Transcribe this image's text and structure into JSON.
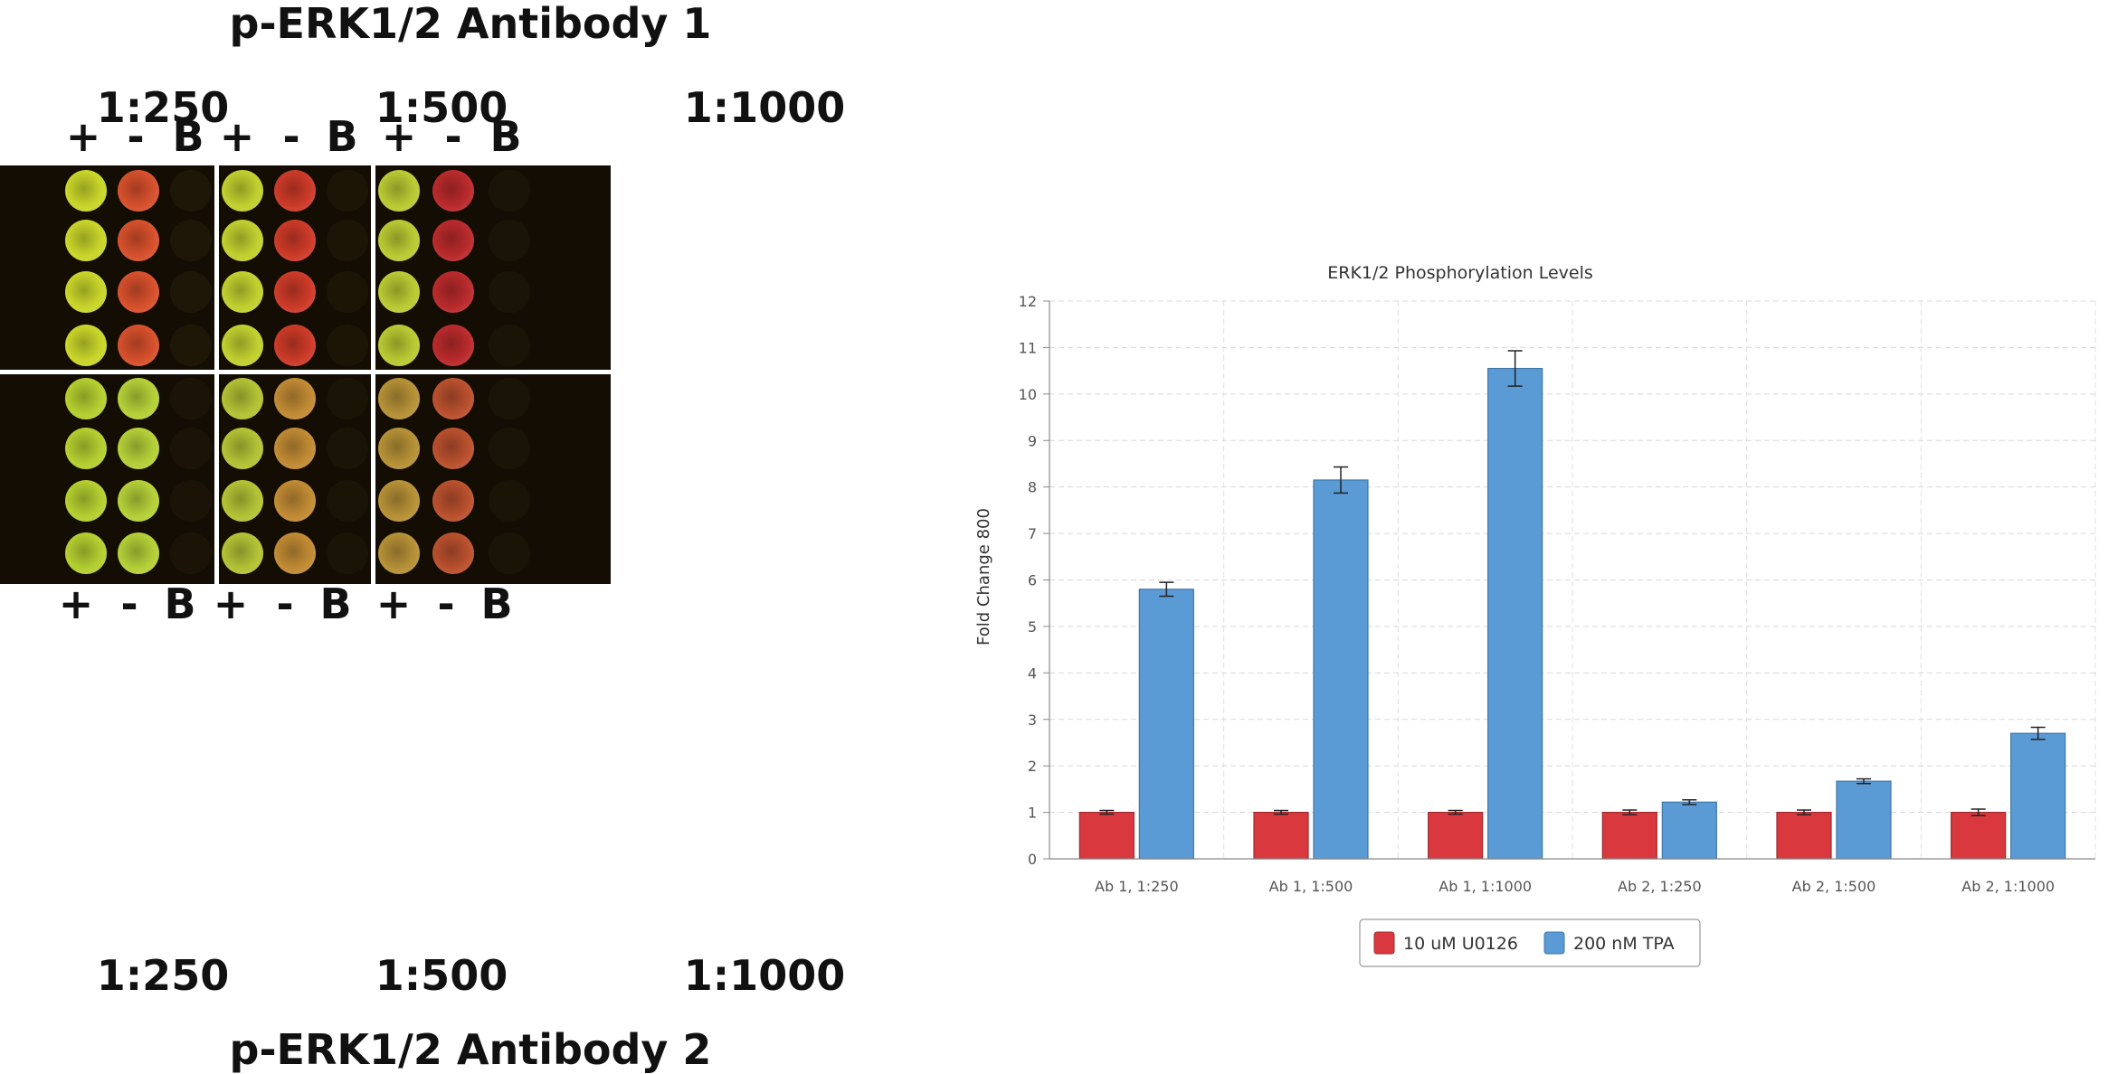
{
  "blot": {
    "top_title": "p-ERK1/2 Antibody 1",
    "bottom_title": "p-ERK1/2 Antibody 2",
    "dilutions": [
      "1:250",
      "1:500",
      "1:1000"
    ],
    "lane_labels": [
      "+",
      "-",
      "B"
    ],
    "panels": [
      {
        "wells": [
          [
            "#c9d52a",
            "#d0562a",
            "#1e1606"
          ],
          [
            "#cbd52c",
            "#c74a28",
            "#1f1707"
          ],
          [
            "#c8d72e",
            "#c04626",
            "#1d1606"
          ],
          [
            "#c2d52c",
            "#c0412a",
            "#1c1506"
          ]
        ]
      },
      {
        "wells": [
          [
            "#aacf30",
            "#b7d236",
            "#1c1506"
          ],
          [
            "#a8cd30",
            "#c49233",
            "#1c1506"
          ],
          [
            "#a7cc31",
            "#b99737",
            "#1c1506"
          ],
          [
            "#a9cd30",
            "#b2682a",
            "#1b1406"
          ]
        ]
      }
    ],
    "panel_well_colors": [
      [
        [
          "#c9d52a",
          "#d6502c",
          "#1e1606"
        ],
        [
          "#c1cf2f",
          "#cc3a28",
          "#1c1506"
        ],
        [
          "#b9c933",
          "#b92a2c",
          "#1a1406"
        ]
      ],
      [
        [
          "#b4ce30",
          "#b4cf38",
          "#1b1406"
        ],
        [
          "#b2c235",
          "#c08a34",
          "#1a1406"
        ],
        [
          "#b59036",
          "#b9502e",
          "#1a1406"
        ]
      ]
    ]
  },
  "chart_data": {
    "type": "bar",
    "title": "ERK1/2 Phosphorylation Levels",
    "xlabel": "",
    "ylabel": "Fold Change 800",
    "ylim": [
      0,
      12
    ],
    "yticks": [
      0,
      1,
      2,
      3,
      4,
      5,
      6,
      7,
      8,
      9,
      10,
      11,
      12
    ],
    "grid": true,
    "legend_position": "bottom",
    "categories": [
      "Ab 1, 1:250",
      "Ab 1, 1:500",
      "Ab 1, 1:1000",
      "Ab 2, 1:250",
      "Ab 2, 1:500",
      "Ab 2, 1:1000"
    ],
    "series": [
      {
        "name": "10 uM U0126",
        "color": "#d9393e",
        "values": [
          1.0,
          1.0,
          1.0,
          1.0,
          1.0,
          1.0
        ],
        "errors": [
          0.04,
          0.04,
          0.04,
          0.05,
          0.05,
          0.07
        ]
      },
      {
        "name": "200 nM TPA",
        "color": "#5b9bd5",
        "values": [
          5.8,
          8.15,
          10.55,
          1.22,
          1.67,
          2.7
        ],
        "errors": [
          0.15,
          0.28,
          0.38,
          0.05,
          0.05,
          0.13
        ]
      }
    ]
  }
}
